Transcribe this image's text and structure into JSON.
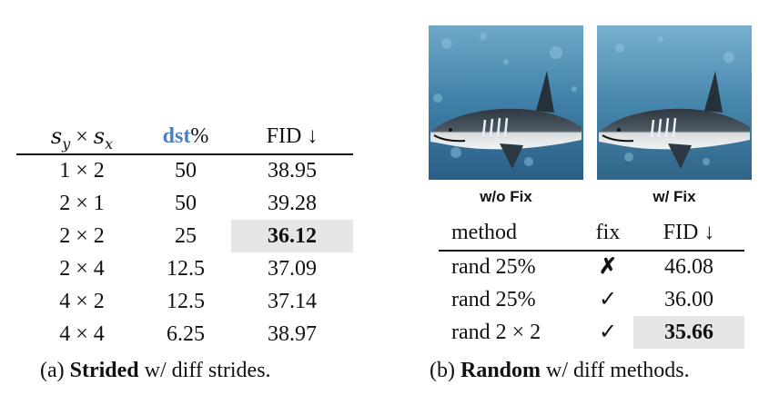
{
  "table_a": {
    "headers": {
      "stride_x": "×",
      "dst": "dst",
      "dst_unit": "%",
      "fid": "FID ↓"
    },
    "rows": [
      {
        "sy": "1",
        "sx": "2",
        "dst": "50",
        "fid": "38.95"
      },
      {
        "sy": "2",
        "sx": "1",
        "dst": "50",
        "fid": "39.28"
      },
      {
        "sy": "2",
        "sx": "2",
        "dst": "25",
        "fid": "36.12"
      },
      {
        "sy": "2",
        "sx": "4",
        "dst": "12.5",
        "fid": "37.09"
      },
      {
        "sy": "4",
        "sx": "2",
        "dst": "12.5",
        "fid": "37.14"
      },
      {
        "sy": "4",
        "sx": "4",
        "dst": "6.25",
        "fid": "38.97"
      }
    ],
    "times": "×",
    "caption": {
      "prefix": "(a) ",
      "bold": "Strided",
      "rest": " w/ diff strides."
    }
  },
  "images": [
    {
      "label": "w/o Fix"
    },
    {
      "label": "w/ Fix"
    }
  ],
  "table_b": {
    "headers": {
      "method": "method",
      "fix": "fix",
      "fid": "FID ↓"
    },
    "rows": [
      {
        "method": "rand 25%",
        "fix": "✗",
        "fid": "46.08"
      },
      {
        "method": "rand 25%",
        "fix": "✓",
        "fid": "36.00"
      },
      {
        "method": "rand 2 × 2",
        "fix": "✓",
        "fid": "35.66"
      }
    ],
    "caption": {
      "prefix": "(b) ",
      "bold": "Random",
      "rest": " w/ diff methods."
    }
  },
  "colors": {
    "highlight": "#e6e6e6",
    "dst_accent": "#4a7fc3"
  }
}
